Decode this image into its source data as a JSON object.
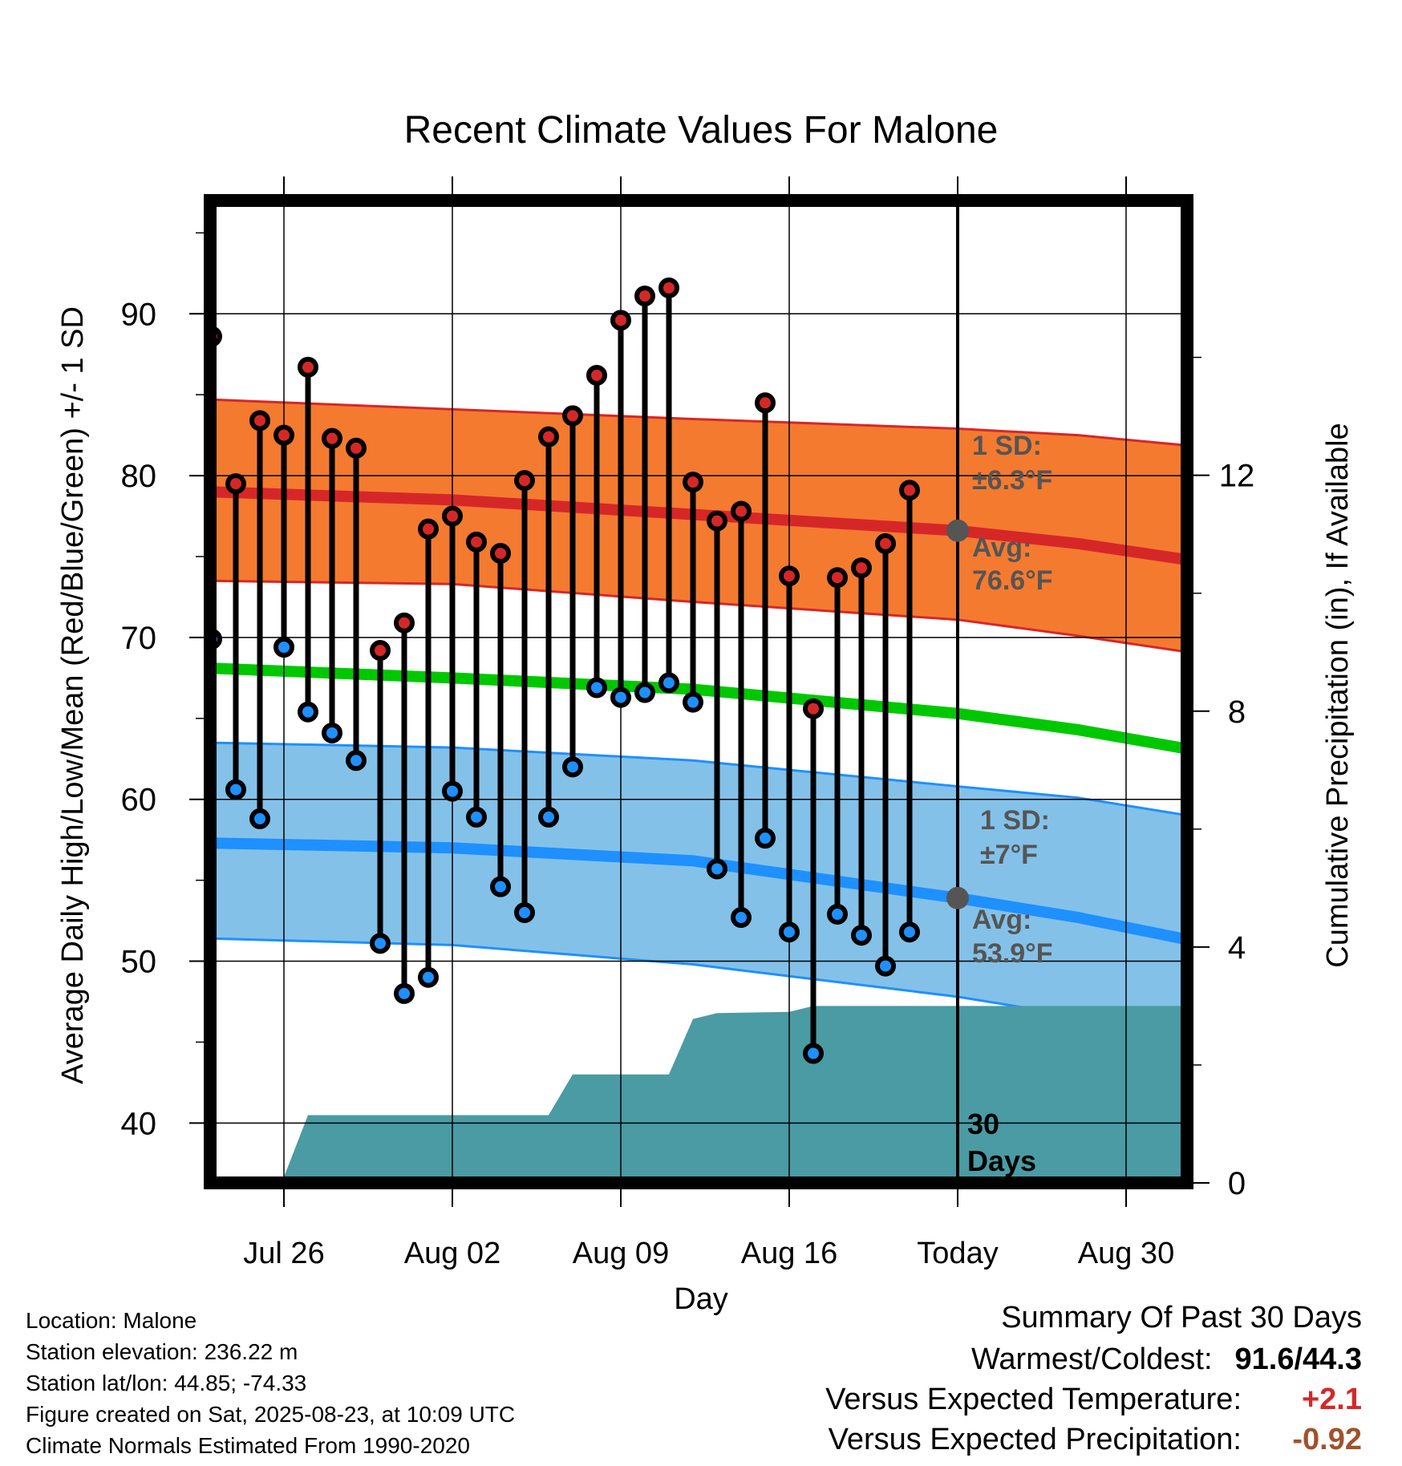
{
  "chart_data": {
    "type": "line",
    "title": "Recent Climate Values For Malone",
    "xlabel": "Day",
    "ylabel": "Average Daily High/Low/Mean (Red/Blue/Green) +/- 1 SD",
    "y2label": "Cumulative Precipitation (in), If Available",
    "ylim": [
      36.3,
      97
    ],
    "y2lim": [
      0,
      16.66
    ],
    "xlim": [
      "2025-07-23",
      "2025-09-02"
    ],
    "yticks": [
      "40",
      "50",
      "60",
      "70",
      "80",
      "90"
    ],
    "y2ticks": [
      "0",
      "4",
      "8",
      "12"
    ],
    "xticks": [
      {
        "label": "Jul 26",
        "date": "2025-07-26"
      },
      {
        "label": "Aug 02",
        "date": "2025-08-02"
      },
      {
        "label": "Aug 09",
        "date": "2025-08-09"
      },
      {
        "label": "Aug 16",
        "date": "2025-08-16"
      },
      {
        "label": "Today",
        "date": "2025-08-23"
      },
      {
        "label": "Aug 30",
        "date": "2025-08-30"
      }
    ],
    "grid": true,
    "today": "2025-08-23",
    "normals": {
      "dates": [
        "2025-07-23",
        "2025-08-02",
        "2025-08-12",
        "2025-08-23",
        "2025-08-28",
        "2025-09-02"
      ],
      "high_mean": [
        79.0,
        78.5,
        77.6,
        76.6,
        75.8,
        74.7
      ],
      "high_upper": [
        84.7,
        84.1,
        83.5,
        82.9,
        82.5,
        81.8
      ],
      "high_lower": [
        73.5,
        73.3,
        72.2,
        71.1,
        70.1,
        69.0
      ],
      "mean": [
        68.1,
        67.5,
        66.8,
        65.3,
        64.3,
        63.0
      ],
      "low_mean": [
        57.3,
        57.0,
        56.2,
        53.9,
        52.7,
        51.2
      ],
      "low_upper": [
        63.5,
        63.2,
        62.4,
        60.8,
        60.1,
        58.9
      ],
      "low_lower": [
        51.4,
        51.0,
        49.8,
        47.8,
        46.6,
        44.7
      ]
    },
    "series": [
      {
        "name": "High",
        "color": "#d62728",
        "x": [
          "2025-07-23",
          "2025-07-24",
          "2025-07-25",
          "2025-07-26",
          "2025-07-27",
          "2025-07-28",
          "2025-07-29",
          "2025-07-30",
          "2025-07-31",
          "2025-08-01",
          "2025-08-02",
          "2025-08-03",
          "2025-08-04",
          "2025-08-05",
          "2025-08-06",
          "2025-08-07",
          "2025-08-08",
          "2025-08-09",
          "2025-08-10",
          "2025-08-11",
          "2025-08-12",
          "2025-08-13",
          "2025-08-14",
          "2025-08-15",
          "2025-08-16",
          "2025-08-17",
          "2025-08-18",
          "2025-08-19",
          "2025-08-20",
          "2025-08-21",
          "2025-08-22"
        ],
        "values": [
          88.6,
          79.5,
          83.4,
          82.5,
          86.7,
          82.3,
          81.7,
          69.2,
          70.9,
          76.7,
          77.5,
          75.9,
          75.2,
          79.7,
          82.4,
          83.7,
          86.2,
          89.6,
          91.1,
          91.6,
          79.6,
          77.2,
          77.8,
          84.5,
          73.8,
          65.6,
          73.7,
          74.3,
          75.8,
          79.1,
          null
        ]
      },
      {
        "name": "Low",
        "color": "#1e90ff",
        "x": [
          "2025-07-23",
          "2025-07-24",
          "2025-07-25",
          "2025-07-26",
          "2025-07-27",
          "2025-07-28",
          "2025-07-29",
          "2025-07-30",
          "2025-07-31",
          "2025-08-01",
          "2025-08-02",
          "2025-08-03",
          "2025-08-04",
          "2025-08-05",
          "2025-08-06",
          "2025-08-07",
          "2025-08-08",
          "2025-08-09",
          "2025-08-10",
          "2025-08-11",
          "2025-08-12",
          "2025-08-13",
          "2025-08-14",
          "2025-08-15",
          "2025-08-16",
          "2025-08-17",
          "2025-08-18",
          "2025-08-19",
          "2025-08-20",
          "2025-08-21",
          "2025-08-22"
        ],
        "values": [
          69.9,
          60.6,
          58.8,
          69.4,
          65.4,
          64.1,
          62.4,
          51.1,
          48.0,
          49.0,
          60.5,
          58.9,
          54.6,
          53.0,
          58.9,
          62.0,
          66.9,
          66.3,
          66.6,
          67.2,
          66.0,
          55.7,
          52.7,
          57.6,
          51.8,
          44.3,
          52.9,
          51.6,
          49.7,
          51.8,
          null
        ]
      }
    ],
    "precip": {
      "dates": [
        "2025-07-23",
        "2025-07-25",
        "2025-07-26",
        "2025-07-27",
        "2025-08-06",
        "2025-08-07",
        "2025-08-11",
        "2025-08-12",
        "2025-08-13",
        "2025-08-16",
        "2025-08-17",
        "2025-09-02"
      ],
      "values": [
        0,
        0.03,
        0.1,
        1.15,
        1.15,
        1.84,
        1.84,
        2.78,
        2.88,
        2.9,
        3.0,
        3.0
      ]
    },
    "annotations": {
      "high_sd_line1": "1 SD:",
      "high_sd_line2": "±6.3°F",
      "high_avg_line1": "Avg:",
      "high_avg_line2": "76.6°F",
      "high_avg_value": 76.6,
      "low_sd_line1": "1 SD:",
      "low_sd_line2": "±7°F",
      "low_avg_line1": "Avg:",
      "low_avg_value": 53.9,
      "low_avg_line2": "53.9°F",
      "days_line1": "30",
      "days_line2": "Days"
    },
    "colors": {
      "high_band": "#f47a30",
      "high_line": "#d62728",
      "mean_line": "#00c800",
      "low_band": "#84c1e8",
      "low_line": "#1e90ff",
      "precip_fill": "#4a9ba4",
      "annotation_text": "#555555",
      "avg_marker": "#555555"
    }
  },
  "footer": {
    "location": "Location: Malone",
    "elevation": "Station elevation: 236.22 m",
    "latlon": "Station lat/lon: 44.85; -74.33",
    "created": "Figure created on Sat, 2025-08-23, at 10:09 UTC",
    "normals": "Climate Normals Estimated From 1990-2020"
  },
  "summary": {
    "heading": "Summary Of Past 30 Days",
    "warm_cold_label": "Warmest/Coldest:",
    "warm_cold_value": "91.6/44.3",
    "temp_label": "Versus Expected Temperature:",
    "temp_value": "+2.1",
    "temp_color": "#d62728",
    "precip_label": "Versus Expected Precipitation:",
    "precip_value": "-0.92",
    "precip_color": "#a0522d"
  }
}
